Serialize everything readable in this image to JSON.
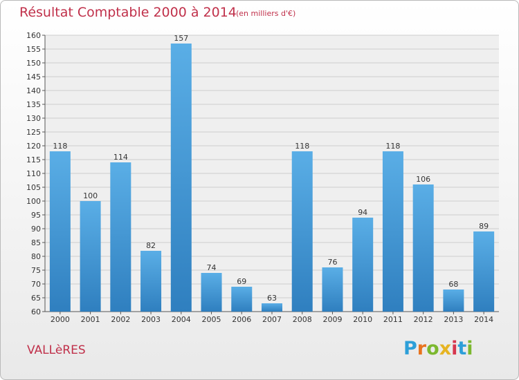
{
  "header": {
    "title": "Résultat Comptable 2000 à 2014",
    "unit": "(en milliers d'€)"
  },
  "footer": {
    "commune": "VALLèRES",
    "logo_letters": [
      "P",
      "r",
      "o",
      "x",
      "i",
      "t",
      "i"
    ],
    "logo_colors": [
      "#2d9fd8",
      "#e8731e",
      "#7cb82f",
      "#e6b422",
      "#d6364e",
      "#2d9fd8",
      "#7cb82f"
    ]
  },
  "colors": {
    "accent": "#c0304a",
    "bar_light": "#5aaee6",
    "bar_dark": "#2f7fbf",
    "grid": "#cccccc"
  },
  "chart_data": {
    "type": "bar",
    "title": "Résultat Comptable 2000 à 2014",
    "categories": [
      "2000",
      "2001",
      "2002",
      "2003",
      "2004",
      "2005",
      "2006",
      "2007",
      "2008",
      "2009",
      "2010",
      "2011",
      "2012",
      "2013",
      "2014"
    ],
    "values": [
      118,
      100,
      114,
      82,
      157,
      74,
      69,
      63,
      118,
      76,
      94,
      118,
      106,
      68,
      89
    ],
    "ylim": [
      60,
      160
    ],
    "yticks": [
      60,
      65,
      70,
      75,
      80,
      85,
      90,
      95,
      100,
      105,
      110,
      115,
      120,
      125,
      130,
      135,
      140,
      145,
      150,
      155,
      160
    ],
    "grid": true,
    "legend": "none"
  }
}
